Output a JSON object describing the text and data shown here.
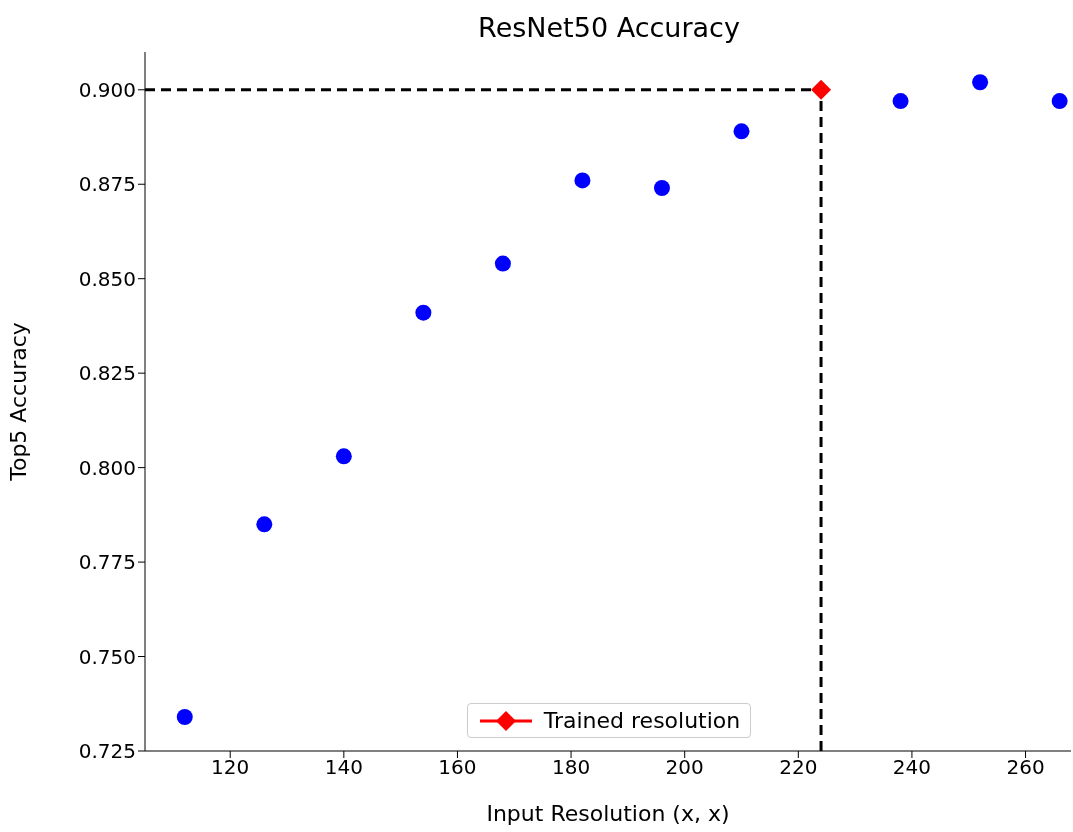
{
  "chart_data": {
    "type": "scatter",
    "title": "ResNet50 Accuracy",
    "xlabel": "Input Resolution (x, x)",
    "ylabel": "Top5 Accuracy",
    "series": [
      {
        "type": "scatter",
        "color": "#0000ff",
        "marker": "circle",
        "x": [
          112,
          126,
          140,
          154,
          168,
          182,
          196,
          210,
          238,
          252,
          266
        ],
        "values": [
          0.734,
          0.785,
          0.803,
          0.841,
          0.854,
          0.876,
          0.874,
          0.889,
          0.897,
          0.902,
          0.897
        ]
      },
      {
        "type": "scatter",
        "name": "Trained resolution",
        "color": "#ff0000",
        "marker": "diamond",
        "x": [
          224
        ],
        "values": [
          0.9
        ]
      }
    ],
    "xlim": [
      105,
      268
    ],
    "xticks": [
      120,
      140,
      160,
      180,
      200,
      220,
      240,
      260
    ],
    "ylim": [
      0.725,
      0.91
    ],
    "yticks": [
      0.725,
      {
        "value": 0.75,
        "label": "0.750"
      },
      0.775,
      {
        "value": 0.8,
        "label": "0.800"
      },
      0.825,
      {
        "value": 0.85,
        "label": "0.850"
      },
      0.875,
      {
        "value": 0.9,
        "label": "0.900"
      }
    ],
    "ref_lines": [
      {
        "axis": "y",
        "value": 0.9,
        "color": "#000000",
        "line_style": "dashed"
      },
      {
        "axis": "x",
        "value": 224,
        "color": "#000000",
        "line_style": "dashed"
      }
    ],
    "grid": false,
    "legend": "bottom"
  }
}
